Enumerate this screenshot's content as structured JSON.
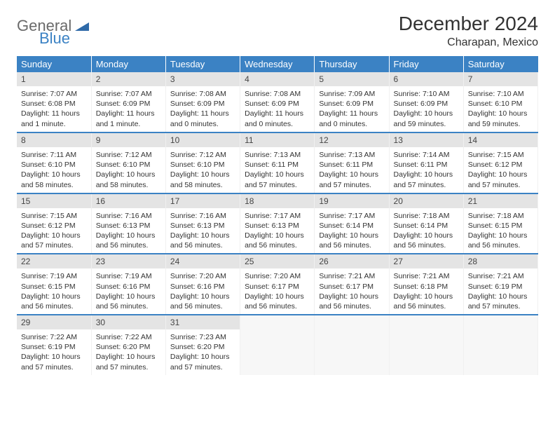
{
  "logo": {
    "general": "General",
    "blue": "Blue"
  },
  "title": "December 2024",
  "location": "Charapan, Mexico",
  "headers": [
    "Sunday",
    "Monday",
    "Tuesday",
    "Wednesday",
    "Thursday",
    "Friday",
    "Saturday"
  ],
  "colors": {
    "header_bg": "#3b82c4",
    "header_text": "#ffffff",
    "daynum_bg": "#e4e4e4",
    "row_divider": "#3b82c4"
  },
  "weeks": [
    [
      {
        "n": "1",
        "sr": "Sunrise: 7:07 AM",
        "ss": "Sunset: 6:08 PM",
        "dl": "Daylight: 11 hours and 1 minute."
      },
      {
        "n": "2",
        "sr": "Sunrise: 7:07 AM",
        "ss": "Sunset: 6:09 PM",
        "dl": "Daylight: 11 hours and 1 minute."
      },
      {
        "n": "3",
        "sr": "Sunrise: 7:08 AM",
        "ss": "Sunset: 6:09 PM",
        "dl": "Daylight: 11 hours and 0 minutes."
      },
      {
        "n": "4",
        "sr": "Sunrise: 7:08 AM",
        "ss": "Sunset: 6:09 PM",
        "dl": "Daylight: 11 hours and 0 minutes."
      },
      {
        "n": "5",
        "sr": "Sunrise: 7:09 AM",
        "ss": "Sunset: 6:09 PM",
        "dl": "Daylight: 11 hours and 0 minutes."
      },
      {
        "n": "6",
        "sr": "Sunrise: 7:10 AM",
        "ss": "Sunset: 6:09 PM",
        "dl": "Daylight: 10 hours and 59 minutes."
      },
      {
        "n": "7",
        "sr": "Sunrise: 7:10 AM",
        "ss": "Sunset: 6:10 PM",
        "dl": "Daylight: 10 hours and 59 minutes."
      }
    ],
    [
      {
        "n": "8",
        "sr": "Sunrise: 7:11 AM",
        "ss": "Sunset: 6:10 PM",
        "dl": "Daylight: 10 hours and 58 minutes."
      },
      {
        "n": "9",
        "sr": "Sunrise: 7:12 AM",
        "ss": "Sunset: 6:10 PM",
        "dl": "Daylight: 10 hours and 58 minutes."
      },
      {
        "n": "10",
        "sr": "Sunrise: 7:12 AM",
        "ss": "Sunset: 6:10 PM",
        "dl": "Daylight: 10 hours and 58 minutes."
      },
      {
        "n": "11",
        "sr": "Sunrise: 7:13 AM",
        "ss": "Sunset: 6:11 PM",
        "dl": "Daylight: 10 hours and 57 minutes."
      },
      {
        "n": "12",
        "sr": "Sunrise: 7:13 AM",
        "ss": "Sunset: 6:11 PM",
        "dl": "Daylight: 10 hours and 57 minutes."
      },
      {
        "n": "13",
        "sr": "Sunrise: 7:14 AM",
        "ss": "Sunset: 6:11 PM",
        "dl": "Daylight: 10 hours and 57 minutes."
      },
      {
        "n": "14",
        "sr": "Sunrise: 7:15 AM",
        "ss": "Sunset: 6:12 PM",
        "dl": "Daylight: 10 hours and 57 minutes."
      }
    ],
    [
      {
        "n": "15",
        "sr": "Sunrise: 7:15 AM",
        "ss": "Sunset: 6:12 PM",
        "dl": "Daylight: 10 hours and 57 minutes."
      },
      {
        "n": "16",
        "sr": "Sunrise: 7:16 AM",
        "ss": "Sunset: 6:13 PM",
        "dl": "Daylight: 10 hours and 56 minutes."
      },
      {
        "n": "17",
        "sr": "Sunrise: 7:16 AM",
        "ss": "Sunset: 6:13 PM",
        "dl": "Daylight: 10 hours and 56 minutes."
      },
      {
        "n": "18",
        "sr": "Sunrise: 7:17 AM",
        "ss": "Sunset: 6:13 PM",
        "dl": "Daylight: 10 hours and 56 minutes."
      },
      {
        "n": "19",
        "sr": "Sunrise: 7:17 AM",
        "ss": "Sunset: 6:14 PM",
        "dl": "Daylight: 10 hours and 56 minutes."
      },
      {
        "n": "20",
        "sr": "Sunrise: 7:18 AM",
        "ss": "Sunset: 6:14 PM",
        "dl": "Daylight: 10 hours and 56 minutes."
      },
      {
        "n": "21",
        "sr": "Sunrise: 7:18 AM",
        "ss": "Sunset: 6:15 PM",
        "dl": "Daylight: 10 hours and 56 minutes."
      }
    ],
    [
      {
        "n": "22",
        "sr": "Sunrise: 7:19 AM",
        "ss": "Sunset: 6:15 PM",
        "dl": "Daylight: 10 hours and 56 minutes."
      },
      {
        "n": "23",
        "sr": "Sunrise: 7:19 AM",
        "ss": "Sunset: 6:16 PM",
        "dl": "Daylight: 10 hours and 56 minutes."
      },
      {
        "n": "24",
        "sr": "Sunrise: 7:20 AM",
        "ss": "Sunset: 6:16 PM",
        "dl": "Daylight: 10 hours and 56 minutes."
      },
      {
        "n": "25",
        "sr": "Sunrise: 7:20 AM",
        "ss": "Sunset: 6:17 PM",
        "dl": "Daylight: 10 hours and 56 minutes."
      },
      {
        "n": "26",
        "sr": "Sunrise: 7:21 AM",
        "ss": "Sunset: 6:17 PM",
        "dl": "Daylight: 10 hours and 56 minutes."
      },
      {
        "n": "27",
        "sr": "Sunrise: 7:21 AM",
        "ss": "Sunset: 6:18 PM",
        "dl": "Daylight: 10 hours and 56 minutes."
      },
      {
        "n": "28",
        "sr": "Sunrise: 7:21 AM",
        "ss": "Sunset: 6:19 PM",
        "dl": "Daylight: 10 hours and 57 minutes."
      }
    ],
    [
      {
        "n": "29",
        "sr": "Sunrise: 7:22 AM",
        "ss": "Sunset: 6:19 PM",
        "dl": "Daylight: 10 hours and 57 minutes."
      },
      {
        "n": "30",
        "sr": "Sunrise: 7:22 AM",
        "ss": "Sunset: 6:20 PM",
        "dl": "Daylight: 10 hours and 57 minutes."
      },
      {
        "n": "31",
        "sr": "Sunrise: 7:23 AM",
        "ss": "Sunset: 6:20 PM",
        "dl": "Daylight: 10 hours and 57 minutes."
      },
      null,
      null,
      null,
      null
    ]
  ]
}
